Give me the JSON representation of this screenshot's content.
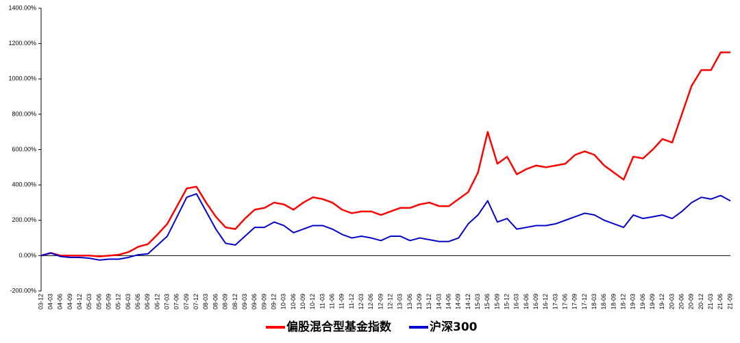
{
  "chart_data": {
    "type": "line",
    "categories": [
      "03-12",
      "04-03",
      "04-06",
      "04-09",
      "04-12",
      "05-03",
      "05-06",
      "05-09",
      "05-12",
      "06-03",
      "06-06",
      "06-09",
      "06-12",
      "07-03",
      "07-06",
      "07-09",
      "07-12",
      "08-03",
      "08-06",
      "08-09",
      "08-12",
      "09-03",
      "09-06",
      "09-09",
      "09-12",
      "10-03",
      "10-06",
      "10-09",
      "10-12",
      "11-03",
      "11-06",
      "11-09",
      "11-12",
      "12-03",
      "12-06",
      "12-09",
      "12-12",
      "13-03",
      "13-06",
      "13-09",
      "13-12",
      "14-03",
      "14-06",
      "14-09",
      "14-12",
      "15-03",
      "15-06",
      "15-09",
      "15-12",
      "16-03",
      "16-06",
      "16-09",
      "16-12",
      "17-03",
      "17-06",
      "17-09",
      "17-12",
      "18-03",
      "18-06",
      "18-09",
      "18-12",
      "19-03",
      "19-06",
      "19-09",
      "19-12",
      "20-03",
      "20-06",
      "20-09",
      "20-12",
      "21-03",
      "21-06",
      "21-09"
    ],
    "series": [
      {
        "name": "偏股混合型基金指数",
        "color": "#ff0000",
        "values": [
          0,
          15,
          0,
          0,
          0,
          0,
          -5,
          0,
          5,
          20,
          50,
          65,
          120,
          180,
          280,
          380,
          390,
          300,
          220,
          160,
          150,
          210,
          260,
          270,
          300,
          290,
          260,
          300,
          330,
          320,
          300,
          260,
          240,
          250,
          250,
          230,
          250,
          270,
          270,
          290,
          300,
          280,
          280,
          320,
          360,
          470,
          700,
          520,
          560,
          460,
          490,
          510,
          500,
          510,
          520,
          570,
          590,
          570,
          510,
          470,
          430,
          560,
          550,
          600,
          660,
          640,
          800,
          960,
          1050,
          1050,
          1150,
          1150
        ]
      },
      {
        "name": "沪深300",
        "color": "#0000cc",
        "values": [
          0,
          15,
          -5,
          -10,
          -10,
          -15,
          -25,
          -20,
          -20,
          -10,
          5,
          10,
          60,
          110,
          220,
          330,
          350,
          250,
          150,
          70,
          60,
          110,
          160,
          160,
          190,
          170,
          130,
          150,
          170,
          170,
          150,
          120,
          100,
          110,
          100,
          85,
          110,
          110,
          85,
          100,
          90,
          80,
          80,
          100,
          180,
          230,
          310,
          190,
          210,
          150,
          160,
          170,
          170,
          180,
          200,
          220,
          240,
          230,
          200,
          180,
          160,
          230,
          210,
          220,
          230,
          210,
          250,
          300,
          330,
          320,
          340,
          310
        ]
      }
    ],
    "ylim": [
      -200,
      1400
    ],
    "yticks": [
      {
        "value": -200,
        "label": "-200.00%"
      },
      {
        "value": 0,
        "label": "0.00%"
      },
      {
        "value": 200,
        "label": "200.00%"
      },
      {
        "value": 400,
        "label": "400.00%"
      },
      {
        "value": 600,
        "label": "600.00%"
      },
      {
        "value": 800,
        "label": "800.00%"
      },
      {
        "value": 1000,
        "label": "1000.00%"
      },
      {
        "value": 1200,
        "label": "1200.00%"
      },
      {
        "value": 1400,
        "label": "1400.00%"
      }
    ]
  }
}
